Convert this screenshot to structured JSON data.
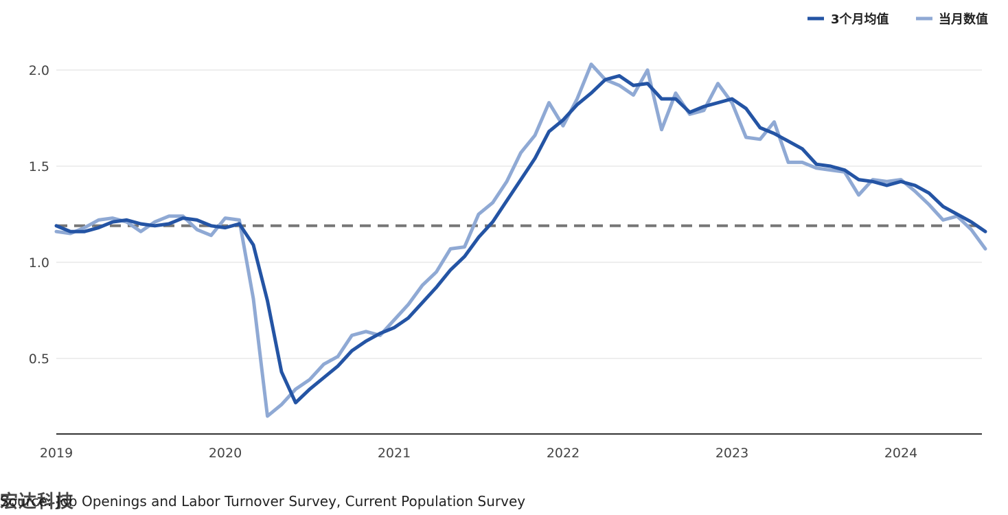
{
  "chart_data": {
    "type": "line",
    "title": "",
    "xlabel": "",
    "ylabel": "",
    "x_tick_labels": [
      "2019",
      "2020",
      "2021",
      "2022",
      "2023",
      "2024"
    ],
    "y_tick_labels": [
      "0.5",
      "1.0",
      "1.5",
      "2.0"
    ],
    "y_ticks": [
      0.5,
      1.0,
      1.5,
      2.0
    ],
    "ylim": [
      0.1,
      2.15
    ],
    "xlim": [
      "2019-01",
      "2024-07"
    ],
    "grid": true,
    "legend_position": "top-right",
    "reference_line": {
      "value": 1.19,
      "style": "dashed",
      "color": "#777777"
    },
    "x": [
      "2019-01",
      "2019-02",
      "2019-03",
      "2019-04",
      "2019-05",
      "2019-06",
      "2019-07",
      "2019-08",
      "2019-09",
      "2019-10",
      "2019-11",
      "2019-12",
      "2020-01",
      "2020-02",
      "2020-03",
      "2020-04",
      "2020-05",
      "2020-06",
      "2020-07",
      "2020-08",
      "2020-09",
      "2020-10",
      "2020-11",
      "2020-12",
      "2021-01",
      "2021-02",
      "2021-03",
      "2021-04",
      "2021-05",
      "2021-06",
      "2021-07",
      "2021-08",
      "2021-09",
      "2021-10",
      "2021-11",
      "2021-12",
      "2022-01",
      "2022-02",
      "2022-03",
      "2022-04",
      "2022-05",
      "2022-06",
      "2022-07",
      "2022-08",
      "2022-09",
      "2022-10",
      "2022-11",
      "2022-12",
      "2023-01",
      "2023-02",
      "2023-03",
      "2023-04",
      "2023-05",
      "2023-06",
      "2023-07",
      "2023-08",
      "2023-09",
      "2023-10",
      "2023-11",
      "2023-12",
      "2024-01",
      "2024-02",
      "2024-03",
      "2024-04",
      "2024-05",
      "2024-06",
      "2024-07"
    ],
    "series": [
      {
        "name": "3个月均值",
        "color": "#2454a4",
        "values": [
          1.19,
          1.16,
          1.16,
          1.18,
          1.21,
          1.22,
          1.2,
          1.19,
          1.2,
          1.23,
          1.22,
          1.19,
          1.18,
          1.2,
          1.09,
          0.8,
          0.43,
          0.27,
          0.34,
          0.4,
          0.46,
          0.54,
          0.59,
          0.63,
          0.66,
          0.71,
          0.79,
          0.87,
          0.96,
          1.03,
          1.13,
          1.21,
          1.32,
          1.43,
          1.54,
          1.68,
          1.74,
          1.82,
          1.88,
          1.95,
          1.97,
          1.92,
          1.93,
          1.85,
          1.85,
          1.78,
          1.81,
          1.83,
          1.85,
          1.8,
          1.7,
          1.67,
          1.63,
          1.59,
          1.51,
          1.5,
          1.48,
          1.43,
          1.42,
          1.4,
          1.42,
          1.4,
          1.36,
          1.29,
          1.25,
          1.21,
          1.16
        ]
      },
      {
        "name": "当月数值",
        "color": "#8fa9d4",
        "values": [
          1.16,
          1.15,
          1.18,
          1.22,
          1.23,
          1.21,
          1.16,
          1.21,
          1.24,
          1.24,
          1.17,
          1.14,
          1.23,
          1.22,
          0.81,
          0.2,
          0.26,
          0.34,
          0.39,
          0.47,
          0.51,
          0.62,
          0.64,
          0.62,
          0.7,
          0.78,
          0.88,
          0.95,
          1.07,
          1.08,
          1.25,
          1.31,
          1.42,
          1.57,
          1.66,
          1.83,
          1.71,
          1.85,
          2.03,
          1.95,
          1.92,
          1.87,
          2.0,
          1.69,
          1.88,
          1.77,
          1.79,
          1.93,
          1.83,
          1.65,
          1.64,
          1.73,
          1.52,
          1.52,
          1.49,
          1.48,
          1.47,
          1.35,
          1.43,
          1.42,
          1.43,
          1.37,
          1.3,
          1.22,
          1.24,
          1.17,
          1.07
        ]
      }
    ]
  },
  "source": "Source: Job Openings and Labor Turnover Survey, Current Population Survey",
  "watermark": "宏达科技",
  "colors": {
    "primary_series": "#2454a4",
    "secondary_series": "#8fa9d4",
    "reference_line": "#777777",
    "gridline": "#dddddd",
    "axis_line": "#333333"
  }
}
